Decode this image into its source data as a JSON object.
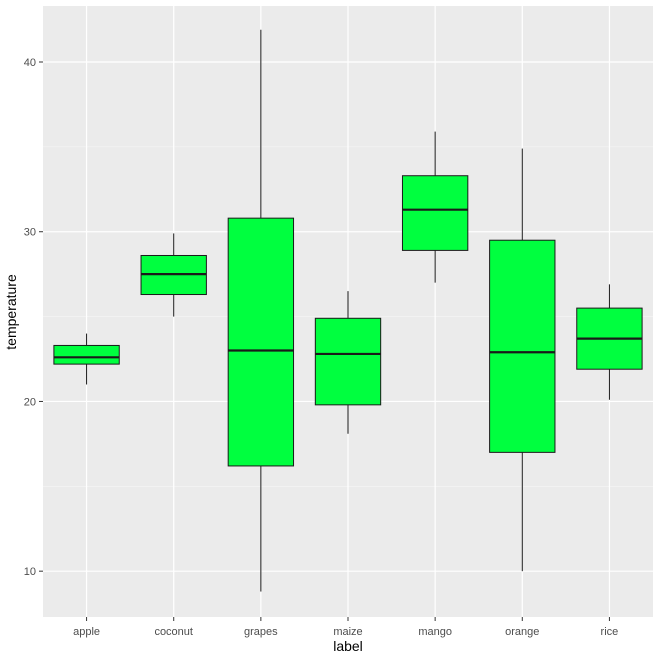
{
  "chart_data": {
    "type": "boxplot",
    "xlabel": "label",
    "ylabel": "temperature",
    "ylim": [
      7.3,
      43.3
    ],
    "y_ticks": [
      10,
      20,
      30,
      40
    ],
    "grid": true,
    "fill_color": "#00ff3f",
    "outline_color": "#1a1a1a",
    "panel_background": "#ebebeb",
    "categories": [
      "apple",
      "coconut",
      "grapes",
      "maize",
      "mango",
      "orange",
      "rice"
    ],
    "boxes": [
      {
        "label": "apple",
        "min": 21.0,
        "q1": 22.2,
        "median": 22.6,
        "q3": 23.3,
        "max": 24.0
      },
      {
        "label": "coconut",
        "min": 25.0,
        "q1": 26.3,
        "median": 27.5,
        "q3": 28.6,
        "max": 29.9
      },
      {
        "label": "grapes",
        "min": 8.8,
        "q1": 16.2,
        "median": 23.0,
        "q3": 30.8,
        "max": 41.9
      },
      {
        "label": "maize",
        "min": 18.1,
        "q1": 19.8,
        "median": 22.8,
        "q3": 24.9,
        "max": 26.5
      },
      {
        "label": "mango",
        "min": 27.0,
        "q1": 28.9,
        "median": 31.3,
        "q3": 33.3,
        "max": 35.9
      },
      {
        "label": "orange",
        "min": 10.0,
        "q1": 17.0,
        "median": 22.9,
        "q3": 29.5,
        "max": 34.9
      },
      {
        "label": "rice",
        "min": 20.1,
        "q1": 21.9,
        "median": 23.7,
        "q3": 25.5,
        "max": 26.9
      }
    ]
  }
}
